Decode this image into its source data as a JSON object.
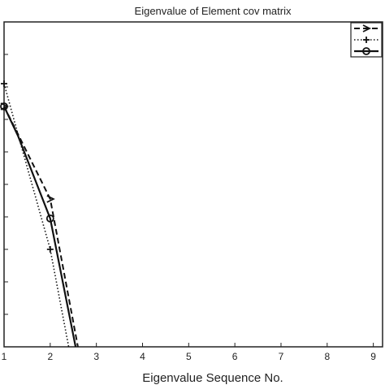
{
  "chart_data": {
    "type": "line",
    "title": "Eigenvalue of Element cov matrix",
    "xlabel": "Eigenvalue Sequence No.",
    "ylabel": "",
    "xlim": [
      1,
      9.2
    ],
    "ylim": [
      0,
      10
    ],
    "x_ticks": [
      "1",
      "2",
      "3",
      "4",
      "5",
      "6",
      "7",
      "8",
      "9"
    ],
    "grid": false,
    "legend_position": "top-right",
    "series": [
      {
        "name": "",
        "style": "dashed",
        "marker": "arrow",
        "x": [
          1,
          1.3,
          2,
          2.6
        ],
        "y": [
          7.4,
          6.55,
          4.55,
          0
        ]
      },
      {
        "name": "",
        "style": "dotted",
        "marker": "plus",
        "x": [
          1,
          1.3,
          2,
          2.4
        ],
        "y": [
          8.1,
          6.55,
          3.0,
          0
        ]
      },
      {
        "name": "",
        "style": "solid",
        "marker": "circle",
        "x": [
          1,
          1.3,
          2,
          2.55
        ],
        "y": [
          7.4,
          6.5,
          3.95,
          0
        ]
      }
    ]
  }
}
